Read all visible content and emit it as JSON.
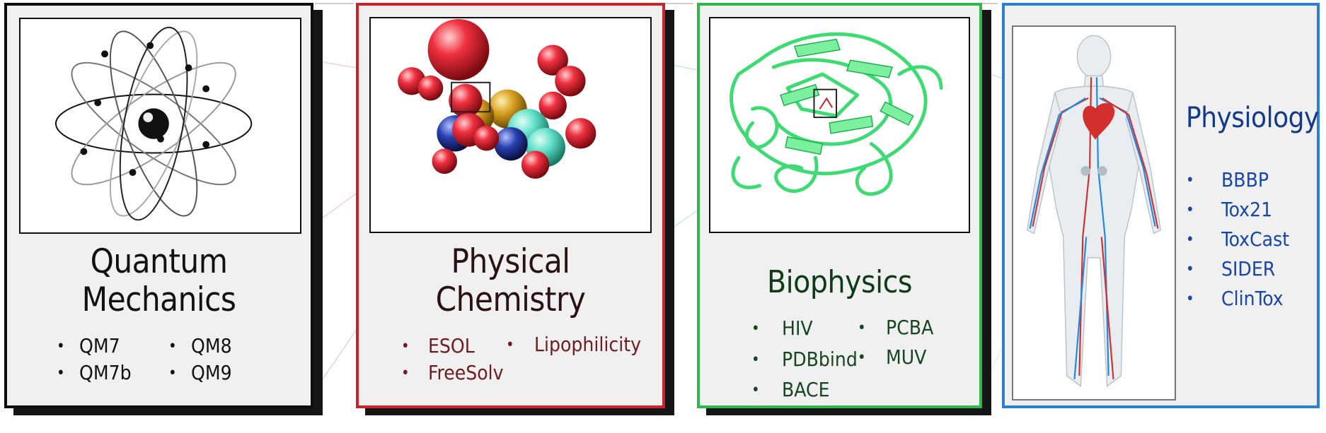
{
  "panels": {
    "quantum": {
      "title_line1": "Quantum",
      "title_line2": "Mechanics",
      "datasets": [
        "QM7",
        "QM7b",
        "QM8",
        "QM9"
      ]
    },
    "physchem": {
      "title_line1": "Physical",
      "title_line2": "Chemistry",
      "datasets": [
        "ESOL",
        "FreeSolv",
        "Lipophilicity"
      ]
    },
    "biophysics": {
      "title": "Biophysics",
      "datasets": [
        "HIV",
        "PDBbind",
        "BACE",
        "PCBA",
        "MUV"
      ]
    },
    "physiology": {
      "title": "Physiology",
      "datasets": [
        "BBBP",
        "Tox21",
        "ToxCast",
        "SIDER",
        "ClinTox"
      ]
    }
  },
  "bullet": "•",
  "colors": {
    "quantum": "#0d0d0d",
    "physchem": "#c8242a",
    "biophysics": "#2fb84a",
    "physiology": "#2d7fd0"
  },
  "icons": [
    "atom-icon",
    "molecule-icon",
    "protein-icon",
    "human-body-icon"
  ]
}
